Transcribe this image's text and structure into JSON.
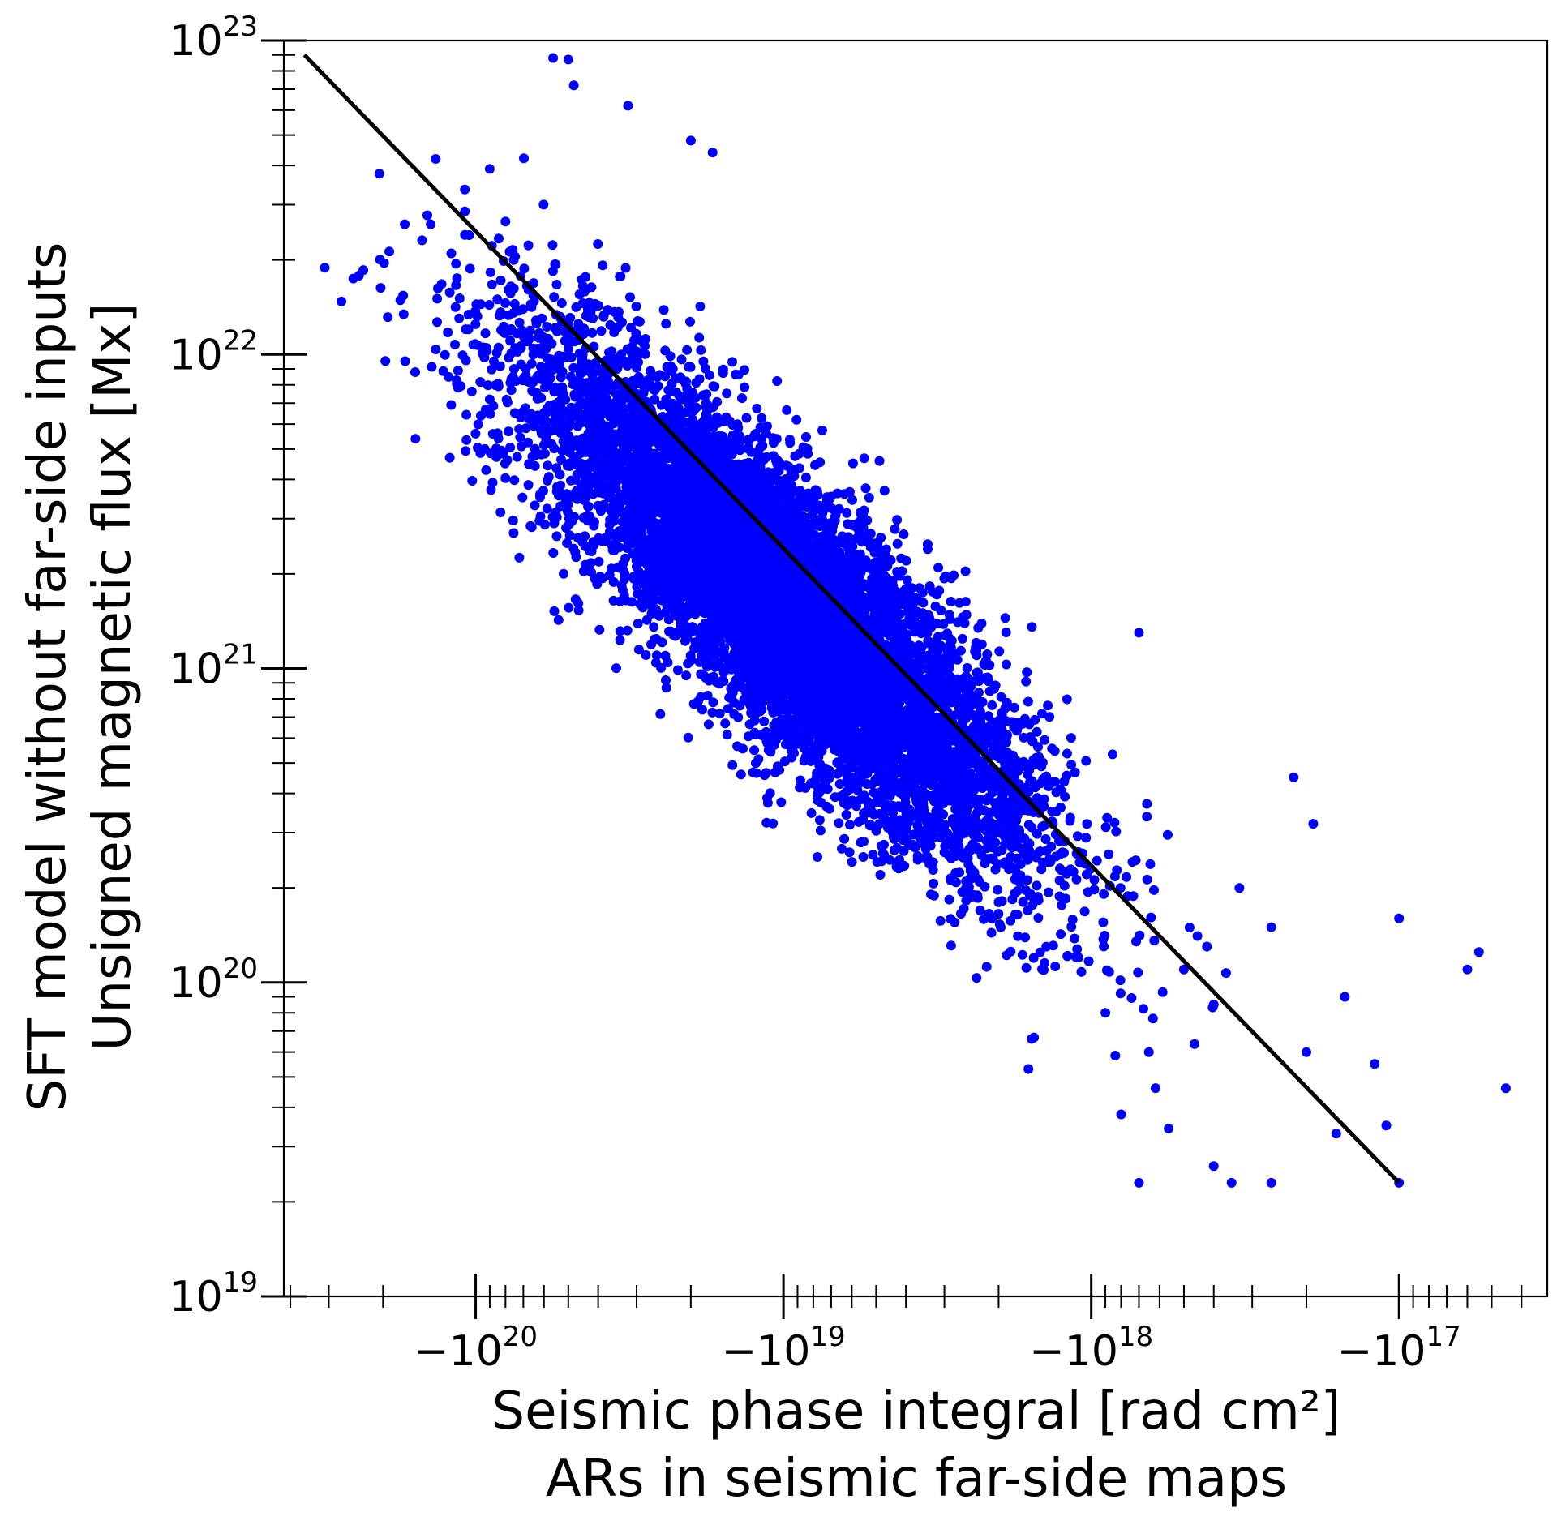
{
  "chart_data": {
    "type": "scatter",
    "title": "",
    "xlabel": [
      "Seismic phase integral [rad cm²]",
      "ARs in seismic far-side maps"
    ],
    "ylabel": [
      "SFT model without far-side inputs",
      "Unsigned magnetic flux [Mx]"
    ],
    "x_scale": "symlog-negative",
    "y_scale": "log",
    "xlim": [
      -4.2e+20,
      -3.3e+16
    ],
    "ylim": [
      1e+19,
      1e+23
    ],
    "x_ticks": [
      {
        "value": -1e+20,
        "base": "−10",
        "exp": "20"
      },
      {
        "value": -1e+19,
        "base": "−10",
        "exp": "19"
      },
      {
        "value": -1e+18,
        "base": "−10",
        "exp": "18"
      },
      {
        "value": -1e+17,
        "base": "−10",
        "exp": "17"
      }
    ],
    "y_ticks": [
      {
        "value": 1e+19,
        "base": "10",
        "exp": "19"
      },
      {
        "value": 1e+20,
        "base": "10",
        "exp": "20"
      },
      {
        "value": 1e+21,
        "base": "10",
        "exp": "21"
      },
      {
        "value": 1e+22,
        "base": "10",
        "exp": "22"
      },
      {
        "value": 1e+23,
        "base": "10",
        "exp": "23"
      }
    ],
    "grid": false,
    "legend": "none",
    "colors": {
      "points": "#0000ff",
      "fit_line": "#000000"
    },
    "fit_line": {
      "x": [
        -3.6e+20,
        -1e+17
      ],
      "y": [
        9e+22,
        2.3e+19
      ]
    },
    "scatter_model": {
      "n_points": 9000,
      "center": {
        "x": -1e+19,
        "y": 1.6e+21
      },
      "slope_log": 1.01,
      "spread_along_dex": 0.55,
      "spread_across_dex": 0.16,
      "seed": 7
    },
    "series": [
      {
        "values": [
          {
            "x": -5.6e+19,
            "y": 8.8e+22
          },
          {
            "x": -5e+19,
            "y": 8.7e+22
          },
          {
            "x": -4.8e+19,
            "y": 7.2e+22
          },
          {
            "x": -3.2e+19,
            "y": 6.2e+22
          },
          {
            "x": -2e+19,
            "y": 4.8e+22
          },
          {
            "x": -1.7e+19,
            "y": 4.4e+22
          },
          {
            "x": -1.4e+20,
            "y": 2.6e+22
          },
          {
            "x": -1.2e+20,
            "y": 2.1e+22
          },
          {
            "x": -1.05e+20,
            "y": 2.4e+22
          },
          {
            "x": -1.7e+20,
            "y": 2.6e+22
          },
          {
            "x": -9e+19,
            "y": 3.9e+22
          },
          {
            "x": -1.15e+20,
            "y": 1.75e+22
          },
          {
            "x": -6.5e+19,
            "y": 1e+22
          },
          {
            "x": -7.5e+19,
            "y": 9e+21
          },
          {
            "x": -3e+19,
            "y": 5.5e+21
          },
          {
            "x": -4e+19,
            "y": 3.3e+21
          },
          {
            "x": -2.6e+19,
            "y": 2.9e+21
          },
          {
            "x": -2.2e+19,
            "y": 2.1e+21
          },
          {
            "x": -1.8e+19,
            "y": 1.5e+21
          },
          {
            "x": -1.3e+19,
            "y": 1e+21
          },
          {
            "x": -8e+18,
            "y": 6.5e+20
          },
          {
            "x": -5e+18,
            "y": 4e+20
          },
          {
            "x": -3e+18,
            "y": 2.6e+20
          },
          {
            "x": -2e+18,
            "y": 1.8e+20
          },
          {
            "x": -1.4e+18,
            "y": 1.3e+20
          },
          {
            "x": -1.1e+18,
            "y": 1.2e+20
          },
          {
            "x": -1.6e+18,
            "y": 5.3e+19
          },
          {
            "x": -7e+17,
            "y": 1.3e+21
          },
          {
            "x": -5.5e+18,
            "y": 2.7e+21
          },
          {
            "x": -3.4e+18,
            "y": 2.4e+21
          },
          {
            "x": -9e+17,
            "y": 8e+19
          },
          {
            "x": -6.5e+17,
            "y": 6e+19
          },
          {
            "x": -5e+17,
            "y": 1.1e+20
          },
          {
            "x": -4e+17,
            "y": 8.5e+19
          },
          {
            "x": -3.3e+17,
            "y": 2e+20
          },
          {
            "x": -2.6e+17,
            "y": 1.5e+20
          },
          {
            "x": -2.2e+17,
            "y": 4.5e+20
          },
          {
            "x": -1.9e+17,
            "y": 3.2e+20
          },
          {
            "x": -1.5e+17,
            "y": 9e+19
          },
          {
            "x": -1.2e+17,
            "y": 5.5e+19
          },
          {
            "x": -1.1e+17,
            "y": 3.5e+19
          },
          {
            "x": -1e+17,
            "y": 1.6e+20
          },
          {
            "x": -6e+16,
            "y": 1.1e+20
          },
          {
            "x": -5.5e+16,
            "y": 1.25e+20
          },
          {
            "x": -4.5e+16,
            "y": 4.6e+19
          },
          {
            "x": -7e+17,
            "y": 2.3e+19
          },
          {
            "x": -3.5e+17,
            "y": 2.3e+19
          },
          {
            "x": -2.6e+17,
            "y": 2.3e+19
          },
          {
            "x": -1e+17,
            "y": 2.3e+19
          },
          {
            "x": -1.6e+17,
            "y": 3.3e+19
          },
          {
            "x": -4e+17,
            "y": 2.6e+19
          },
          {
            "x": -2e+17,
            "y": 6e+19
          },
          {
            "x": -8e+17,
            "y": 3.8e+19
          },
          {
            "x": -1.3e+18,
            "y": 3.5e+20
          }
        ]
      }
    ]
  }
}
